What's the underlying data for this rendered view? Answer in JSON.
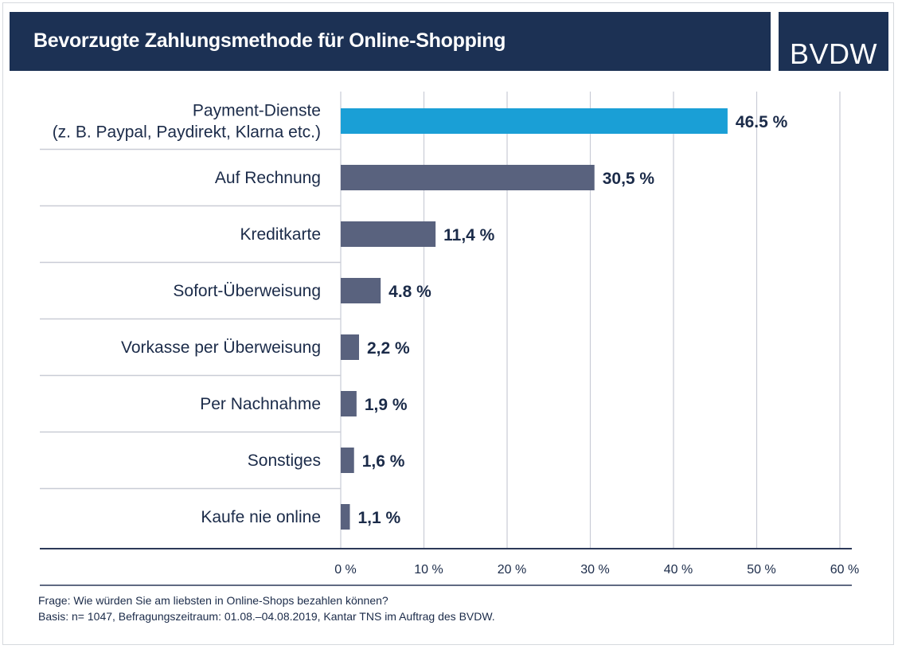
{
  "header": {
    "title": "Bevorzugte Zahlungsmethode für Online-Shopping",
    "logo_text": "BVDW"
  },
  "colors": {
    "header_bg": "#1c3154",
    "highlight_bar": "#1a9fd6",
    "bar": "#59627e",
    "text": "#1b2b49",
    "grid": "#c9ccd6",
    "axis": "#2c3958"
  },
  "chart_data": {
    "type": "bar",
    "orientation": "horizontal",
    "categories": [
      [
        "Payment-Dienste",
        "(z. B. Paypal, Paydirekt, Klarna etc.)"
      ],
      [
        "Auf Rechnung"
      ],
      [
        "Kreditkarte"
      ],
      [
        "Sofort-Überweisung"
      ],
      [
        "Vorkasse per Überweisung"
      ],
      [
        "Per Nachnahme"
      ],
      [
        "Sonstiges"
      ],
      [
        "Kaufe nie online"
      ]
    ],
    "values": [
      46.5,
      30.5,
      11.4,
      4.8,
      2.2,
      1.9,
      1.6,
      1.1
    ],
    "value_labels": [
      "46.5 %",
      "30,5 %",
      "11,4 %",
      "4.8 %",
      "2,2 %",
      "1,9 %",
      "1,6 %",
      "1,1 %"
    ],
    "highlight_index": 0,
    "xlim": [
      0,
      60
    ],
    "x_ticks": [
      0,
      10,
      20,
      30,
      40,
      50,
      60
    ],
    "x_tick_labels": [
      "0 %",
      "10 %",
      "20 %",
      "30 %",
      "40 %",
      "50 %",
      "60 %"
    ],
    "grid": true
  },
  "footnote": {
    "line1": "Frage: Wie würden Sie am liebsten in Online-Shops bezahlen können?",
    "line2": "Basis: n= 1047, Befragungszeitraum: 01.08.–04.08.2019, Kantar TNS im Auftrag des BVDW."
  }
}
